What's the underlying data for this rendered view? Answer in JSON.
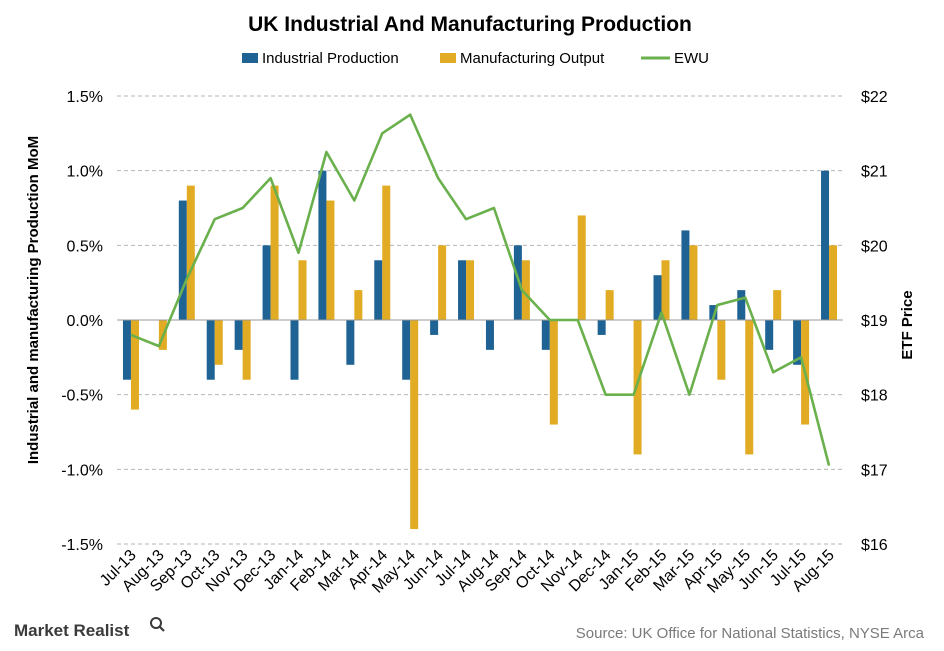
{
  "chart_data": {
    "type": "bar",
    "title": "UK Industrial And Manufacturing Production",
    "ylabel": "Industrial and manufacturing Production MoM",
    "y2label": "ETF Price",
    "ylim": [
      -1.5,
      1.5
    ],
    "y2lim": [
      16,
      22
    ],
    "yticks": [
      "1.5%",
      "1.0%",
      "0.5%",
      "0.0%",
      "-0.5%",
      "-1.0%",
      "-1.5%"
    ],
    "y2ticks": [
      "$22",
      "$21",
      "$20",
      "$19",
      "$18",
      "$17",
      "$16"
    ],
    "categories": [
      "Jul-13",
      "Aug-13",
      "Sep-13",
      "Oct-13",
      "Nov-13",
      "Dec-13",
      "Jan-14",
      "Feb-14",
      "Mar-14",
      "Apr-14",
      "May-14",
      "Jun-14",
      "Jul-14",
      "Aug-14",
      "Sep-14",
      "Oct-14",
      "Nov-14",
      "Dec-14",
      "Jan-15",
      "Feb-15",
      "Mar-15",
      "Apr-15",
      "May-15",
      "Jun-15",
      "Jul-15",
      "Aug-15"
    ],
    "series": [
      {
        "name": "Industrial Production",
        "kind": "bar",
        "color": "#1f6395",
        "values": [
          -0.4,
          0.0,
          0.8,
          -0.4,
          -0.2,
          0.5,
          -0.4,
          1.0,
          -0.3,
          0.4,
          -0.4,
          -0.1,
          0.4,
          -0.2,
          0.5,
          -0.2,
          0.0,
          -0.1,
          0.0,
          0.3,
          0.6,
          0.1,
          0.2,
          -0.2,
          -0.3,
          1.0
        ]
      },
      {
        "name": "Manufacturing Output",
        "kind": "bar",
        "color": "#e1ab23",
        "values": [
          -0.6,
          -0.2,
          0.9,
          -0.3,
          -0.4,
          0.9,
          0.4,
          0.8,
          0.2,
          0.9,
          -1.4,
          0.5,
          0.4,
          0.0,
          0.4,
          -0.7,
          0.7,
          0.2,
          -0.9,
          0.4,
          0.5,
          -0.4,
          -0.9,
          0.2,
          -0.7,
          0.5
        ]
      },
      {
        "name": "EWU",
        "kind": "line",
        "axis": "secondary",
        "color": "#6ab04c",
        "values": [
          18.8,
          18.65,
          19.55,
          20.35,
          20.5,
          20.9,
          19.9,
          21.25,
          20.6,
          21.5,
          21.75,
          20.9,
          20.35,
          20.5,
          19.4,
          19.0,
          19.0,
          18.0,
          18.0,
          19.1,
          18.0,
          19.2,
          19.3,
          18.3,
          18.5,
          17.05
        ]
      }
    ],
    "legend_position": "top",
    "grid": true,
    "source": "Source:  UK Office for National Statistics, NYSE Arca",
    "logo_text": "Market Realist"
  }
}
